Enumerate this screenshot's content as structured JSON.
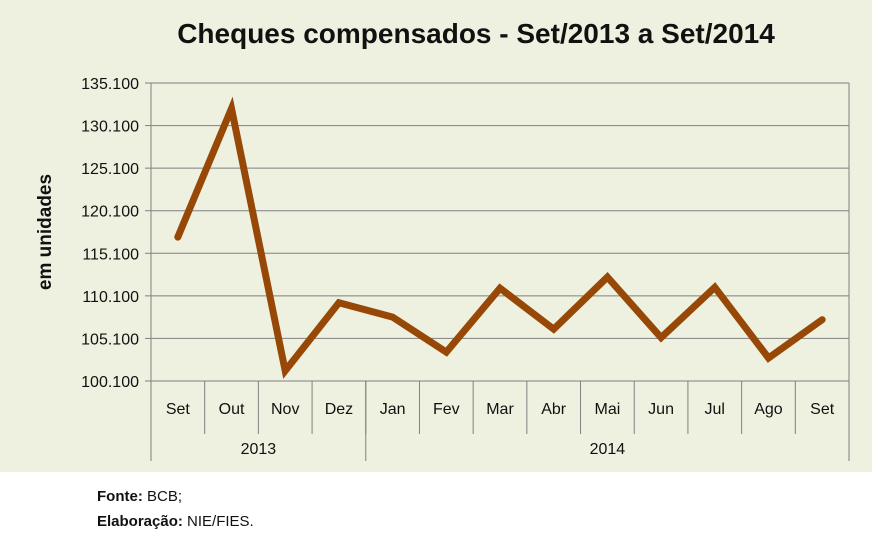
{
  "chart_data": {
    "type": "line",
    "title": "Cheques compensados - Set/2013 a Set/2014",
    "ylabel": "em unidades",
    "xlabel": "",
    "ylim": [
      100100,
      135100
    ],
    "yticks": [
      "100.100",
      "105.100",
      "110.100",
      "115.100",
      "120.100",
      "125.100",
      "130.100",
      "135.100"
    ],
    "ytick_values": [
      100100,
      105100,
      110100,
      115100,
      120100,
      125100,
      130100,
      135100
    ],
    "categories": [
      "Set",
      "Out",
      "Nov",
      "Dez",
      "Jan",
      "Fev",
      "Mar",
      "Abr",
      "Mai",
      "Jun",
      "Jul",
      "Ago",
      "Set"
    ],
    "groups": [
      {
        "label": "2013",
        "span": 4
      },
      {
        "label": "2014",
        "span": 9
      }
    ],
    "series": [
      {
        "values": [
          117000,
          132100,
          101300,
          109300,
          107600,
          103500,
          111000,
          106200,
          112300,
          105200,
          111100,
          102800,
          107300
        ],
        "color": "#974806"
      }
    ],
    "grid": true,
    "legend": "none"
  },
  "footer": {
    "source_label": "Fonte:",
    "source_value": "BCB;",
    "author_label": "Elaboração:",
    "author_value": "NIE/FIES."
  },
  "colors": {
    "panel_background": "#eef1df",
    "line": "#974806",
    "grid": "#808080"
  }
}
